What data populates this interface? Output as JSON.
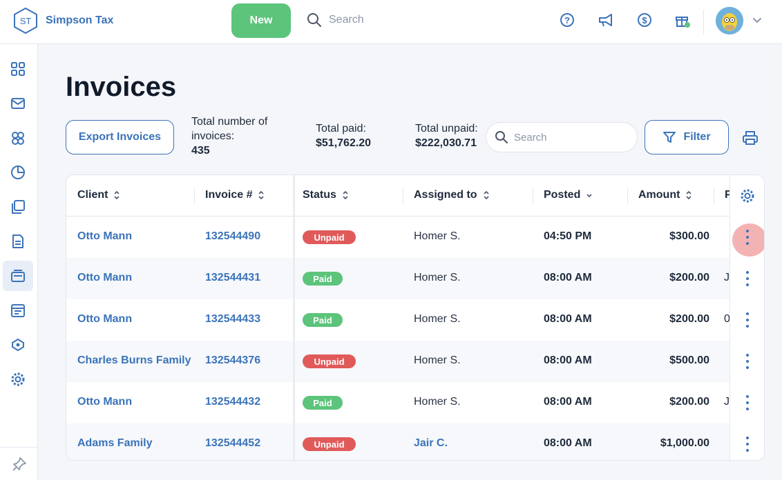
{
  "brand": {
    "logo_text": "ST",
    "name": "Simpson Tax"
  },
  "header": {
    "new_label": "New",
    "search_placeholder": "Search",
    "icons": [
      "help-icon",
      "megaphone-icon",
      "billing-icon",
      "gift-icon"
    ],
    "avatar": "avatar"
  },
  "sidebar": {
    "items": [
      "dashboard-icon",
      "mail-icon",
      "clients-icon",
      "reports-icon",
      "documents-icon",
      "forms-icon",
      "invoices-icon",
      "calendar-icon",
      "tags-icon",
      "settings-icon"
    ],
    "active_index": 6,
    "bottom": "pin-icon"
  },
  "page": {
    "title": "Invoices",
    "export_label": "Export Invoices",
    "total_count_label": "Total number of invoices:",
    "total_count_value": "435",
    "total_paid_label": "Total paid:",
    "total_paid_value": "$51,762.20",
    "total_unpaid_label": "Total unpaid:",
    "total_unpaid_value": "$222,030.71",
    "search_placeholder": "Search",
    "filter_label": "Filter"
  },
  "table": {
    "columns": [
      "Client",
      "Invoice #",
      "Status",
      "Assigned to",
      "Posted",
      "Amount",
      "P"
    ],
    "rows": [
      {
        "client": "Otto Mann",
        "invoice": "132544490",
        "status": "Unpaid",
        "assigned": "Homer S.",
        "assigned_link": false,
        "posted": "04:50 PM",
        "amount": "$300.00",
        "clip": ""
      },
      {
        "client": "Otto Mann",
        "invoice": "132544431",
        "status": "Paid",
        "assigned": "Homer S.",
        "assigned_link": false,
        "posted": "08:00 AM",
        "amount": "$200.00",
        "clip": "J"
      },
      {
        "client": "Otto Mann",
        "invoice": "132544433",
        "status": "Paid",
        "assigned": "Homer S.",
        "assigned_link": false,
        "posted": "08:00 AM",
        "amount": "$200.00",
        "clip": "0"
      },
      {
        "client": "Charles Burns Family",
        "invoice": "132544376",
        "status": "Unpaid",
        "assigned": "Homer S.",
        "assigned_link": false,
        "posted": "08:00 AM",
        "amount": "$500.00",
        "clip": ""
      },
      {
        "client": "Otto Mann",
        "invoice": "132544432",
        "status": "Paid",
        "assigned": "Homer S.",
        "assigned_link": false,
        "posted": "08:00 AM",
        "amount": "$200.00",
        "clip": "J"
      },
      {
        "client": "Adams Family",
        "invoice": "132544452",
        "status": "Unpaid",
        "assigned": "Jair C.",
        "assigned_link": true,
        "posted": "08:00 AM",
        "amount": "$1,000.00",
        "clip": ""
      }
    ]
  }
}
